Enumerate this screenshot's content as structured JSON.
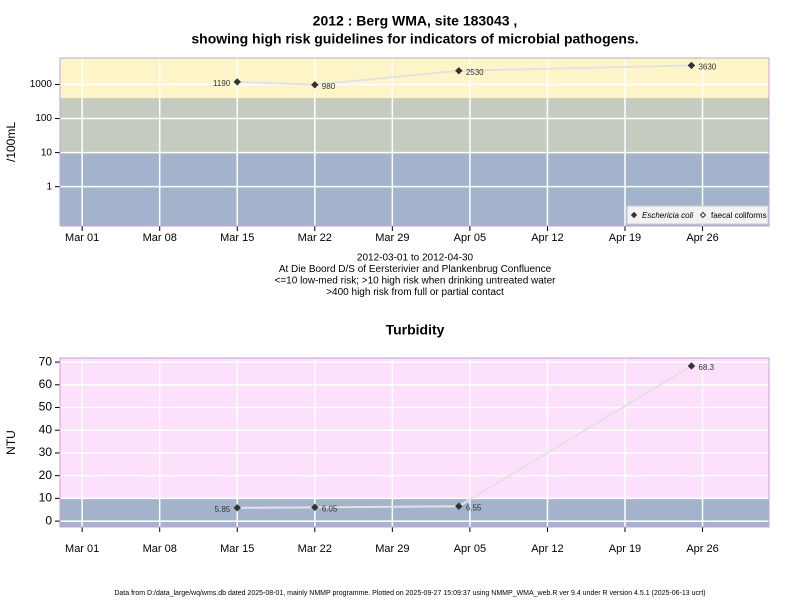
{
  "chart_data": [
    {
      "type": "line",
      "title": [
        "2012 : Berg WMA, site 183043 ,",
        "showing high risk guidelines for indicators of microbial pathogens."
      ],
      "ylabel": "/100mL",
      "log": true,
      "ylim": [
        0.07,
        6000
      ],
      "yticks": [
        1,
        10,
        100,
        1000
      ],
      "xlim": [
        "Feb 28",
        "May 02"
      ],
      "xticks": [
        "Mar 01",
        "Mar 08",
        "Mar 15",
        "Mar 22",
        "Mar 29",
        "Apr 05",
        "Apr 12",
        "Apr 19",
        "Apr 26"
      ],
      "grid": true,
      "thresholds": [
        10,
        400
      ],
      "band_colors": [
        "#a3b3cc",
        "#c5cbbf",
        "#fdf5c8"
      ],
      "legend": "lower right",
      "series": [
        {
          "name": "Eschericia coli",
          "font_style": "italic",
          "marker": "filled",
          "color": "#333333",
          "x": [
            "Mar 15",
            "Mar 22",
            "Apr 04",
            "Apr 25"
          ],
          "values": [
            1190,
            980,
            2530,
            3630
          ]
        },
        {
          "name": "faecal coliforms",
          "font_style": "normal",
          "marker": "open",
          "color": "#333333",
          "x": [],
          "values": []
        }
      ],
      "annotations": [
        "2012-03-01 to 2012-04-30",
        "At Die Boord D/S of Eersterivier and Plankenbrug Confluence",
        "<=10 low-med risk; >10 high risk when drinking untreated water",
        ">400 high risk from full or partial contact"
      ]
    },
    {
      "type": "line",
      "title": [
        "Turbidity"
      ],
      "ylabel": "NTU",
      "log": false,
      "ylim": [
        -2.6,
        71.8
      ],
      "yticks": [
        0,
        10,
        20,
        30,
        40,
        50,
        60,
        70
      ],
      "xlim": [
        "Feb 28",
        "May 02"
      ],
      "xticks": [
        "Mar 01",
        "Mar 08",
        "Mar 15",
        "Mar 22",
        "Mar 29",
        "Apr 05",
        "Apr 12",
        "Apr 19",
        "Apr 26"
      ],
      "grid": true,
      "thresholds": [
        10
      ],
      "band_colors": [
        "#a3b3cc",
        "#fde0fc"
      ],
      "series": [
        {
          "name": "Turbidity",
          "marker": "filled",
          "color": "#333333",
          "x": [
            "Mar 15",
            "Mar 22",
            "Apr 04",
            "Apr 25"
          ],
          "values": [
            5.85,
            6.05,
            6.55,
            68.3
          ]
        }
      ]
    }
  ],
  "footer": "Data from D:/data_large/wq/wms.db dated 2025-08-01, mainly NMMP programme. Plotted on 2025-09-27 15:09:37 using NMMP_WMA_web.R ver 9.4 under R version 4.5.1 (2025-06-13 ucrt)"
}
